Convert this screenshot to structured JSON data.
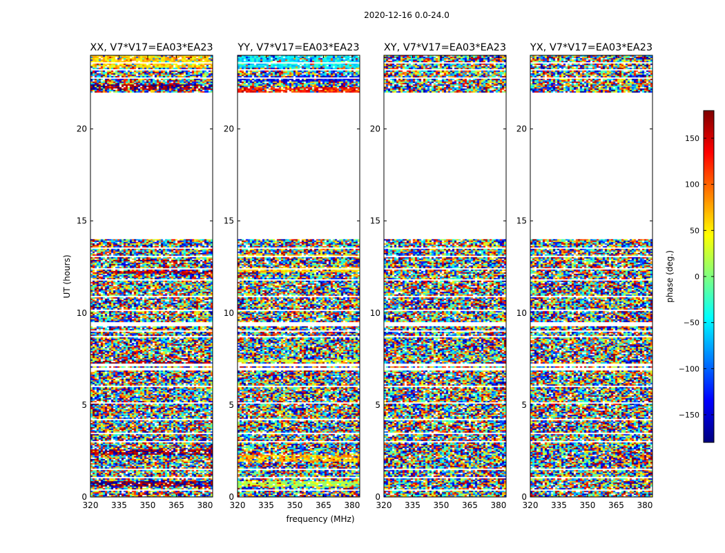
{
  "figure": {
    "suptitle": "2020-12-16 0.0-24.0"
  },
  "chart_data": {
    "type": "heatmap",
    "title": "2020-12-16 0.0-24.0",
    "xlabel": "frequency (MHz)",
    "ylabel": "UT (hours)",
    "xlim": [
      320,
      384
    ],
    "ylim": [
      0,
      24
    ],
    "x_ticks": [
      320,
      335,
      350,
      365,
      380
    ],
    "y_ticks": [
      0,
      5,
      10,
      15,
      20
    ],
    "panels": [
      {
        "title": "XX, V7*V17=EA03*EA23",
        "coherent_bands": [
          [
            0.55,
            0.85,
            180
          ],
          [
            2.3,
            2.6,
            170
          ],
          [
            7.2,
            7.4,
            165
          ],
          [
            12.1,
            12.3,
            160
          ],
          [
            12.8,
            12.9,
            170
          ],
          [
            22.1,
            22.4,
            175
          ],
          [
            23.3,
            24.0,
            60
          ]
        ]
      },
      {
        "title": "YY, V7*V17=EA03*EA23",
        "coherent_bands": [
          [
            0.6,
            0.9,
            20
          ],
          [
            1.9,
            2.3,
            70
          ],
          [
            7.3,
            7.5,
            30
          ],
          [
            12.2,
            12.5,
            60
          ],
          [
            13.0,
            13.2,
            60
          ],
          [
            21.9,
            22.3,
            130
          ],
          [
            22.6,
            22.9,
            -140
          ],
          [
            23.3,
            24.0,
            -50
          ]
        ]
      },
      {
        "title": "XY, V7*V17=EA03*EA23",
        "coherent_bands": []
      },
      {
        "title": "YX, V7*V17=EA03*EA23",
        "coherent_bands": []
      }
    ],
    "data_coverage_ut": [
      [
        0.0,
        14.0
      ],
      [
        22.0,
        24.0
      ]
    ],
    "flagged_ut_gaps": [
      [
        0.35,
        0.45
      ],
      [
        1.05,
        1.12
      ],
      [
        1.5,
        1.56
      ],
      [
        3.0,
        3.07
      ],
      [
        3.4,
        3.5
      ],
      [
        4.2,
        4.26
      ],
      [
        5.1,
        5.16
      ],
      [
        6.0,
        6.05
      ],
      [
        6.9,
        7.0
      ],
      [
        7.12,
        7.25
      ],
      [
        7.9,
        7.95
      ],
      [
        8.3,
        8.33
      ],
      [
        8.7,
        8.73
      ],
      [
        9.0,
        9.05
      ],
      [
        9.25,
        9.5
      ],
      [
        10.1,
        10.18
      ],
      [
        10.3,
        10.36
      ],
      [
        10.85,
        10.9
      ],
      [
        11.75,
        11.8
      ],
      [
        12.35,
        12.45
      ],
      [
        13.05,
        13.12
      ],
      [
        13.5,
        13.55
      ],
      [
        22.7,
        22.78
      ],
      [
        23.15,
        23.22
      ],
      [
        23.55,
        23.6
      ]
    ],
    "colorbar": {
      "label": "phase (deg.)",
      "range": [
        -180,
        180
      ],
      "ticks": [
        -150,
        -100,
        -50,
        0,
        50,
        100,
        150
      ]
    }
  }
}
